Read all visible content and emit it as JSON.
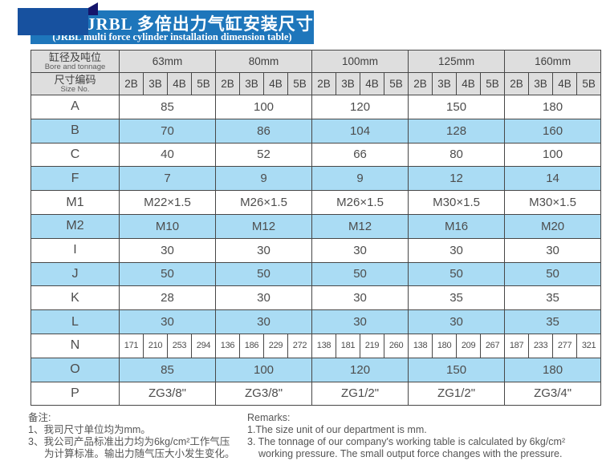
{
  "banner": {
    "title_cn": "JRBL 多倍出力气缸安装尺寸表",
    "title_en": "(JRBL multi force cylinder installation dimension table)"
  },
  "table": {
    "corner": {
      "row1_cn": "缸径及吨位",
      "row1_en": "Bore and tonnage",
      "row2_cn": "尺寸编码",
      "row2_en": "Size No."
    },
    "bores": [
      "63mm",
      "80mm",
      "100mm",
      "125mm",
      "160mm"
    ],
    "size_codes": [
      "2B",
      "3B",
      "4B",
      "5B"
    ],
    "rows": [
      {
        "label": "A",
        "type": "merged",
        "values": [
          "85",
          "100",
          "120",
          "150",
          "180"
        ]
      },
      {
        "label": "B",
        "type": "merged",
        "values": [
          "70",
          "86",
          "104",
          "128",
          "160"
        ]
      },
      {
        "label": "C",
        "type": "merged",
        "values": [
          "40",
          "52",
          "66",
          "80",
          "100"
        ]
      },
      {
        "label": "F",
        "type": "merged",
        "values": [
          "7",
          "9",
          "9",
          "12",
          "14"
        ]
      },
      {
        "label": "M1",
        "type": "merged",
        "values": [
          "M22×1.5",
          "M26×1.5",
          "M26×1.5",
          "M30×1.5",
          "M30×1.5"
        ]
      },
      {
        "label": "M2",
        "type": "merged",
        "values": [
          "M10",
          "M12",
          "M12",
          "M16",
          "M20"
        ]
      },
      {
        "label": "I",
        "type": "merged",
        "values": [
          "30",
          "30",
          "30",
          "30",
          "30"
        ]
      },
      {
        "label": "J",
        "type": "merged",
        "values": [
          "50",
          "50",
          "50",
          "50",
          "50"
        ]
      },
      {
        "label": "K",
        "type": "merged",
        "values": [
          "28",
          "30",
          "30",
          "35",
          "35"
        ]
      },
      {
        "label": "L",
        "type": "merged",
        "values": [
          "30",
          "30",
          "30",
          "30",
          "35"
        ]
      },
      {
        "label": "N",
        "type": "split",
        "values": [
          [
            "171",
            "210",
            "253",
            "294"
          ],
          [
            "136",
            "186",
            "229",
            "272"
          ],
          [
            "138",
            "181",
            "219",
            "260"
          ],
          [
            "138",
            "180",
            "209",
            "267"
          ],
          [
            "187",
            "233",
            "277",
            "321"
          ]
        ]
      },
      {
        "label": "O",
        "type": "merged",
        "values": [
          "85",
          "100",
          "120",
          "150",
          "180"
        ]
      },
      {
        "label": "P",
        "type": "merged",
        "values": [
          "ZG3/8\"",
          "ZG3/8\"",
          "ZG1/2\"",
          "ZG1/2\"",
          "ZG3/4\""
        ]
      }
    ]
  },
  "remarks": {
    "cn_title": "备注:",
    "cn_lines": [
      "1、我司尺寸单位均为mm。",
      "3、我公司产品标准出力均为6kg/cm²工作气压",
      "为计算标准。输出力随气压大小发生变化。"
    ],
    "en_title": "Remarks:",
    "en_lines": [
      "1.The size unit of our department is mm.",
      "3. The tonnage of our company's working table is calculated by 6kg/cm²",
      "working pressure. The small output force changes with the pressure."
    ]
  },
  "colors": {
    "banner_blue": "#1e76bb",
    "square_blue": "#17519f",
    "fold_navy": "#15156b",
    "row_shade": "#aadcf4",
    "header_gray": "#dedede",
    "border": "#474747"
  }
}
